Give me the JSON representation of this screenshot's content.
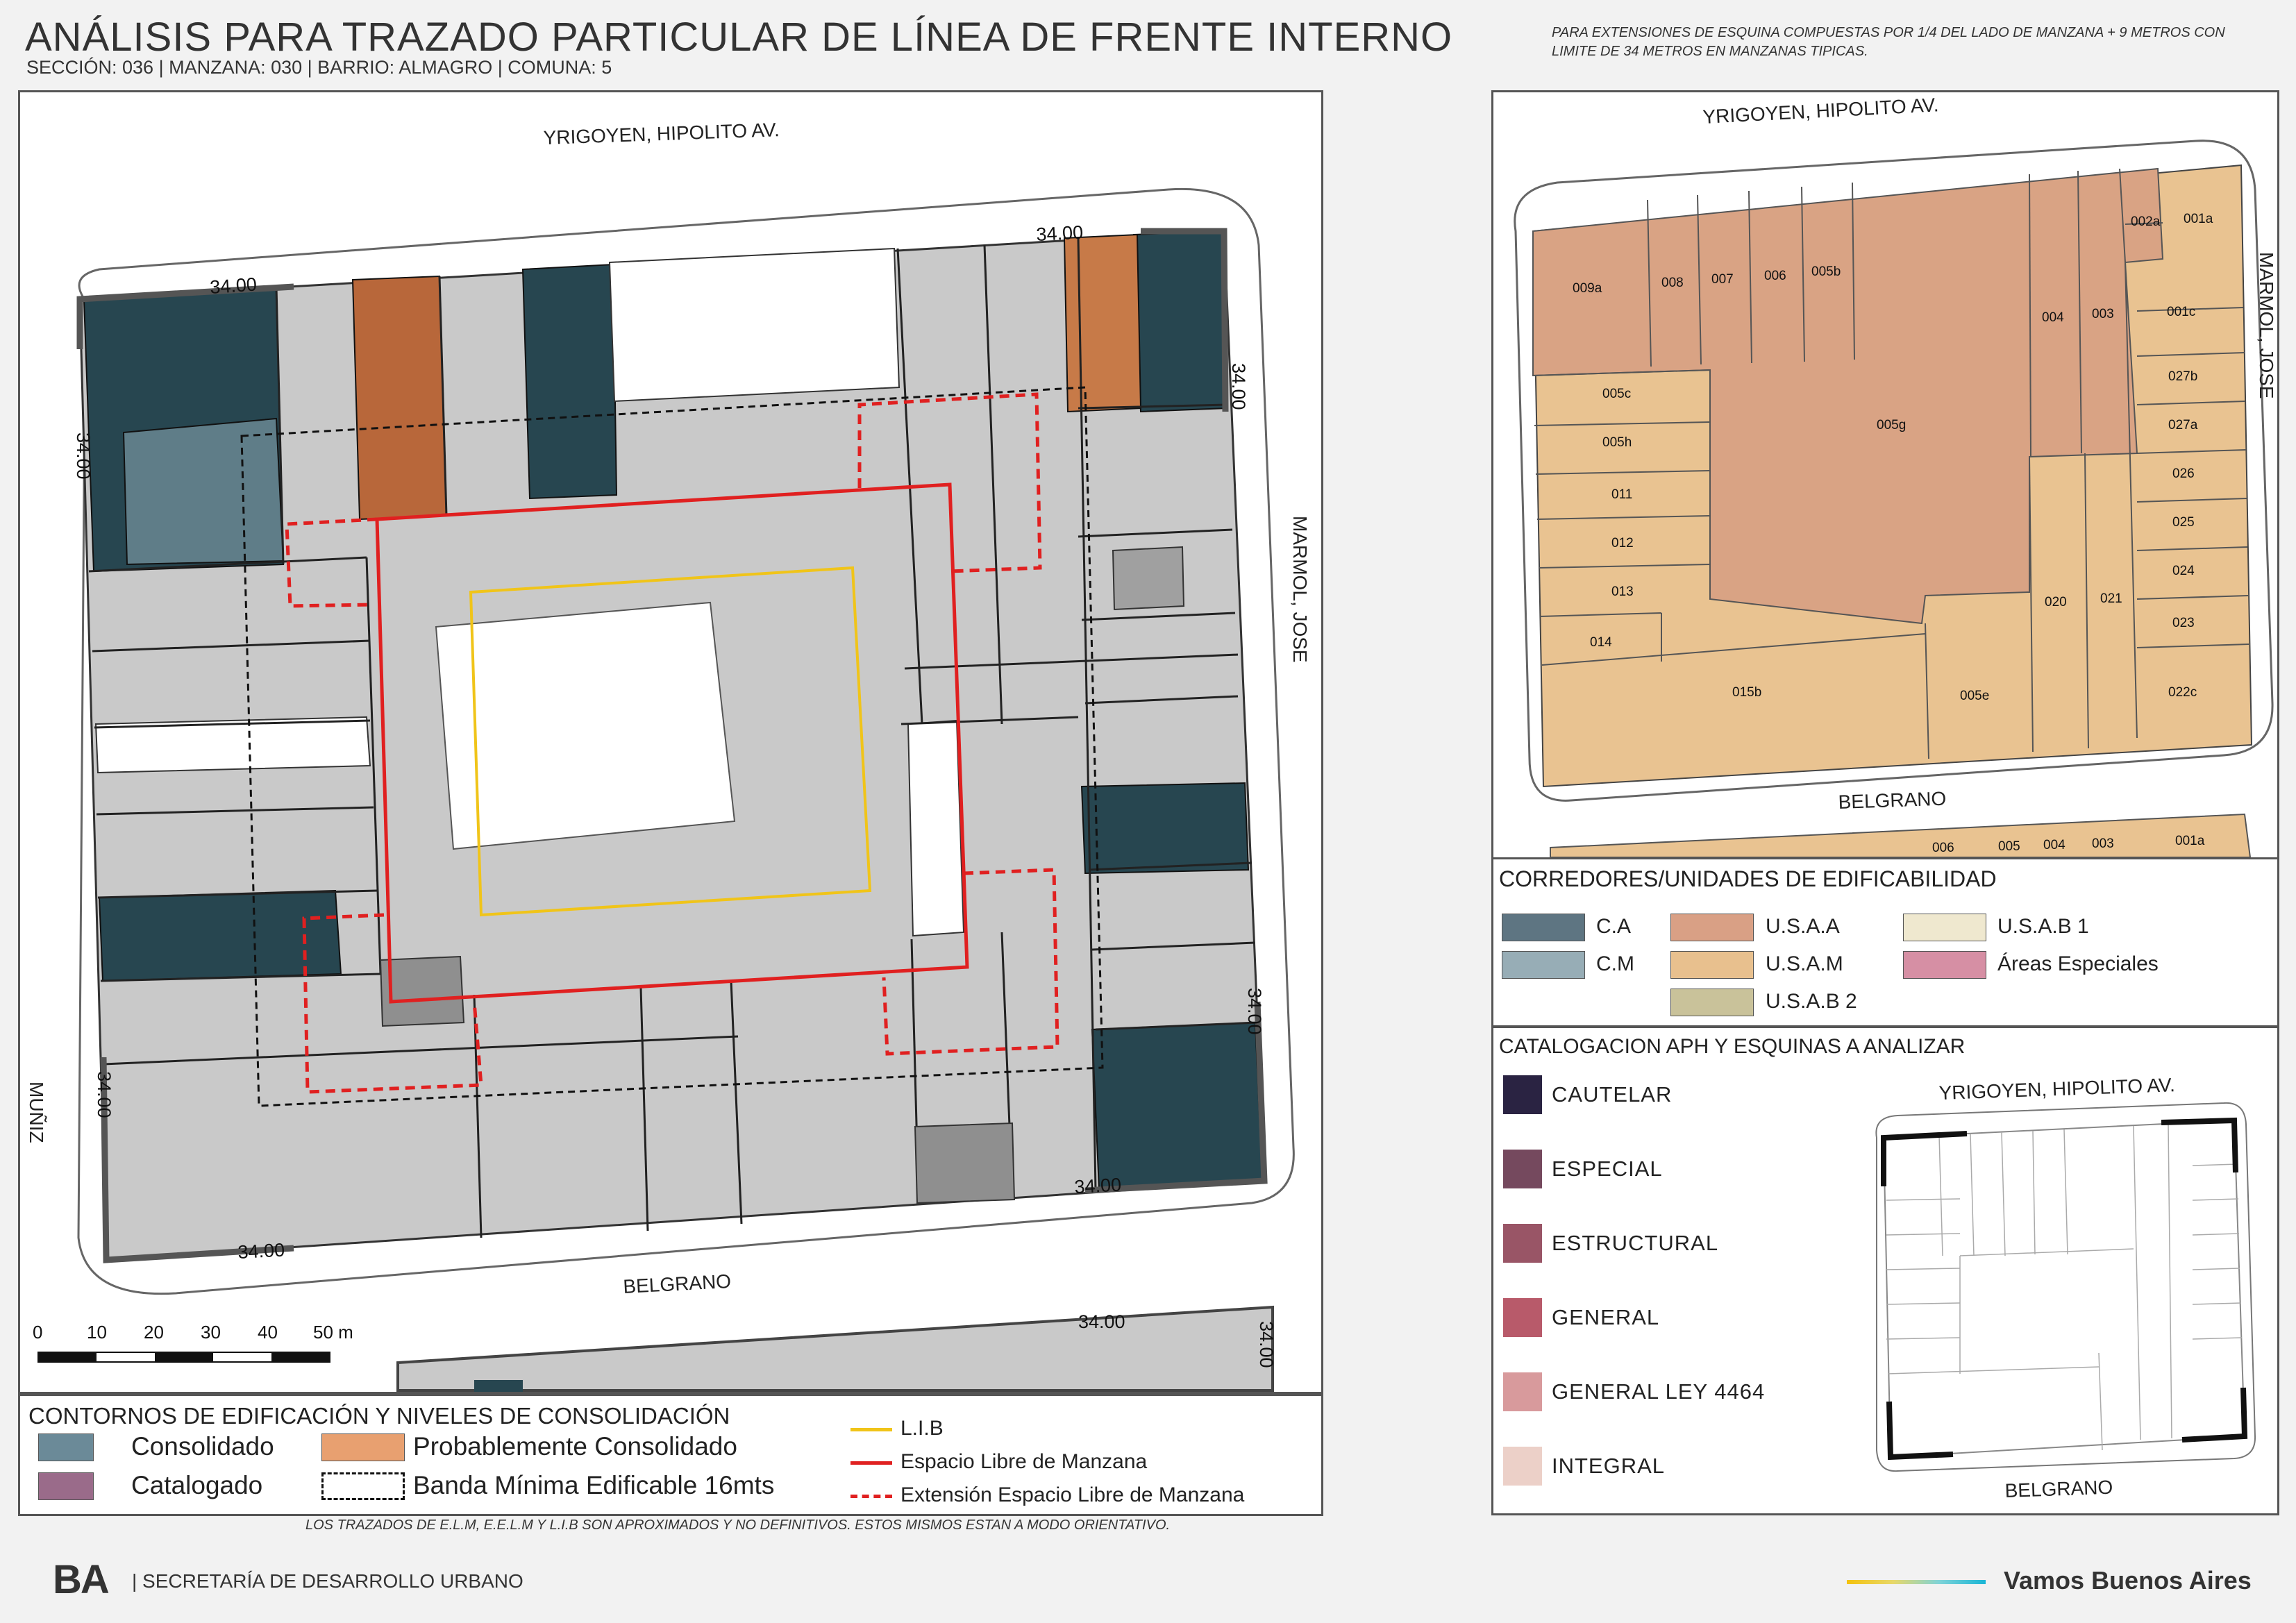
{
  "header": {
    "title": "ANÁLISIS PARA TRAZADO PARTICULAR DE LÍNEA DE FRENTE INTERNO",
    "subtitle": "SECCIÓN: 036 |  MANZANA: 030 | BARRIO: ALMAGRO | COMUNA: 5",
    "note": "PARA EXTENSIONES DE ESQUINA COMPUESTAS POR 1/4 DEL LADO DE MANZANA + 9 METROS CON LIMITE DE 34 METROS EN MANZANAS TIPICAS."
  },
  "main_map": {
    "streets": {
      "north": "YRIGOYEN, HIPOLITO AV.",
      "east": "MARMOL, JOSE",
      "south": "BELGRANO",
      "west": "MUÑIZ"
    },
    "dimension_label": "34.00",
    "scale": {
      "ticks": [
        "0",
        "10",
        "20",
        "30",
        "40",
        "50 m"
      ]
    }
  },
  "legend_main": {
    "title": "CONTORNOS DE EDIFICACIÓN Y NIVELES DE CONSOLIDACIÓN",
    "items": [
      {
        "label": "Consolidado",
        "color": "#6b8a98"
      },
      {
        "label": "Probablemente Consolidado",
        "color": "#e8a070"
      },
      {
        "label": "Catalogado",
        "color": "#9a6b8a"
      },
      {
        "label": "Banda Mínima Edificable 16mts"
      }
    ],
    "lines": [
      {
        "label": "L.I.B",
        "color": "#f0c419",
        "style": "solid"
      },
      {
        "label": "Espacio Libre de Manzana",
        "color": "#e02020",
        "style": "solid"
      },
      {
        "label": "Extensión Espacio Libre de Manzana",
        "color": "#e02020",
        "style": "dashed"
      }
    ]
  },
  "parcel_map": {
    "streets": {
      "north": "YRIGOYEN, HIPOLITO AV.",
      "east": "MARMOL, JOSE",
      "south": "BELGRANO"
    },
    "parcels": [
      "009a",
      "008",
      "007",
      "006",
      "005b",
      "004",
      "003",
      "002a",
      "001a",
      "001c",
      "027b",
      "027a",
      "026",
      "025",
      "024",
      "023",
      "022c",
      "005c",
      "005h",
      "011",
      "012",
      "013",
      "014",
      "005g",
      "015b",
      "005e",
      "020",
      "021"
    ],
    "south_strip": [
      "006",
      "005",
      "004",
      "003",
      "001a"
    ]
  },
  "legend_corredores": {
    "title": "CORREDORES/UNIDADES DE EDIFICABILIDAD",
    "items": [
      {
        "label": "C.A",
        "color": "#5e7582"
      },
      {
        "label": "U.S.A.A",
        "color": "#d9a085"
      },
      {
        "label": "U.S.A.B 1",
        "color": "#efe8cf"
      },
      {
        "label": "C.M",
        "color": "#97adb6"
      },
      {
        "label": "U.S.A.M",
        "color": "#e8c08e"
      },
      {
        "label": "Áreas Especiales",
        "color": "#d68fa4"
      },
      {
        "label": "U.S.A.B 2",
        "color": "#c9c29a"
      }
    ]
  },
  "legend_catalogacion": {
    "title": "CATALOGACION APH Y ESQUINAS A ANALIZAR",
    "items": [
      {
        "label": "CAUTELAR",
        "color": "#2a2342"
      },
      {
        "label": "ESPECIAL",
        "color": "#75495e"
      },
      {
        "label": "ESTRUCTURAL",
        "color": "#995566"
      },
      {
        "label": "GENERAL",
        "color": "#b85a6a"
      },
      {
        "label": "GENERAL LEY 4464",
        "color": "#d89a9c"
      },
      {
        "label": "INTEGRAL",
        "color": "#ecd0c8"
      }
    ],
    "mini_map": {
      "north": "YRIGOYEN, HIPOLITO AV.",
      "south": "BELGRANO"
    }
  },
  "footer": {
    "disclaimer": "LOS TRAZADOS DE E.L.M, E.E.L.M Y L.I.B SON APROXIMADOS Y NO DEFINITIVOS. ESTOS MISMOS ESTAN A MODO ORIENTATIVO.",
    "logo": "BA",
    "secretaria": "| SECRETARÍA DE DESARROLLO URBANO",
    "slogan": "Vamos Buenos Aires"
  }
}
